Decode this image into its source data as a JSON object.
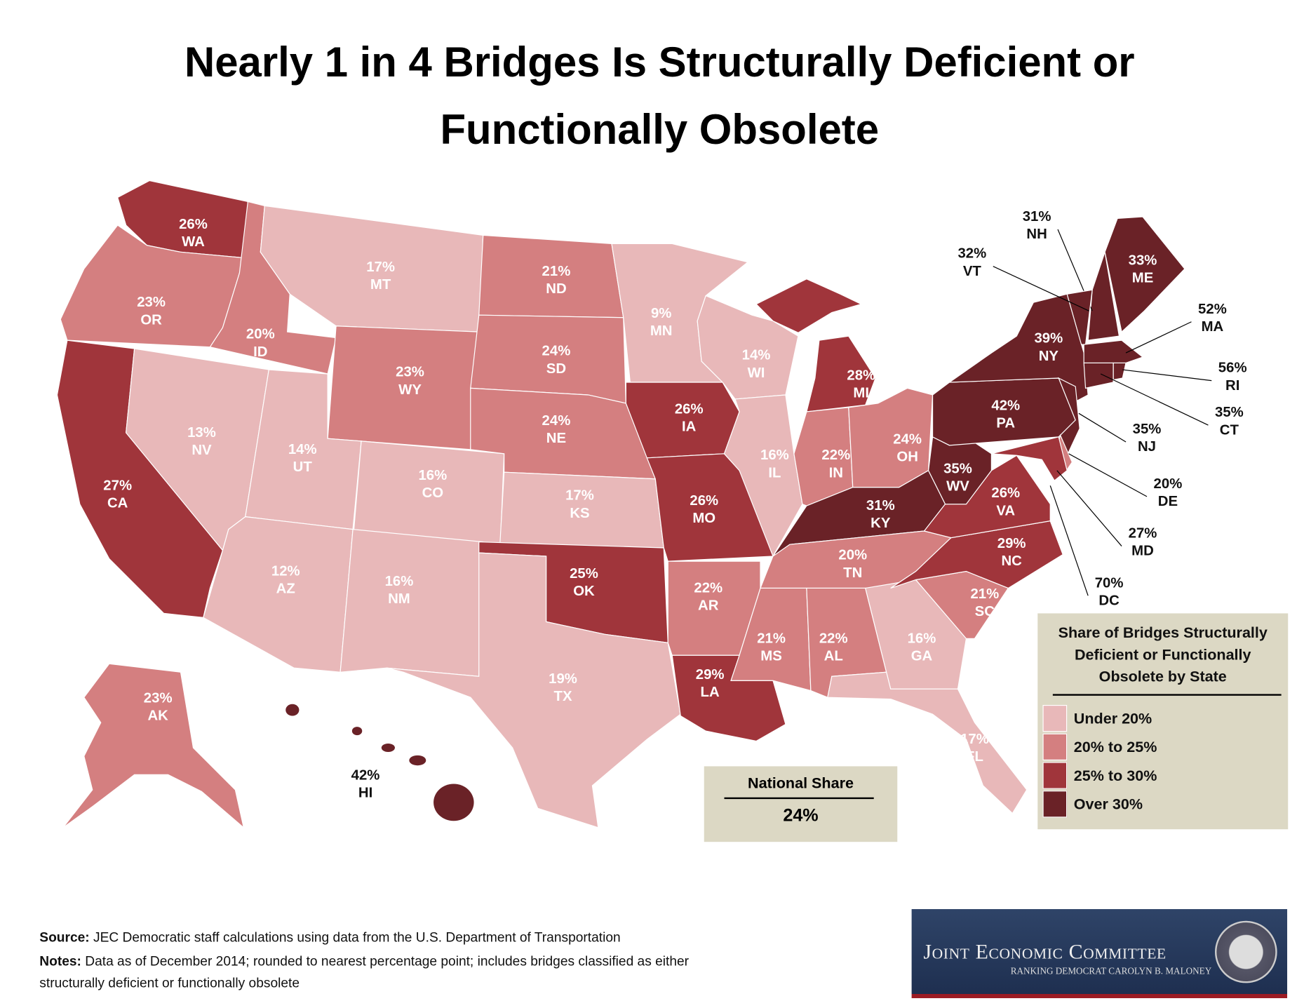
{
  "title": {
    "line1": "Nearly 1 in 4 Bridges Is Structurally Deficient or",
    "line2": "Functionally Obsolete"
  },
  "colors": {
    "under20": "#e8b8b9",
    "20to25": "#d47f80",
    "25to30": "#a0353b",
    "over30": "#6a2227"
  },
  "states": [
    {
      "abbr": "WA",
      "value": "26%"
    },
    {
      "abbr": "OR",
      "value": "23%"
    },
    {
      "abbr": "CA",
      "value": "27%"
    },
    {
      "abbr": "NV",
      "value": "13%"
    },
    {
      "abbr": "ID",
      "value": "20%"
    },
    {
      "abbr": "MT",
      "value": "17%"
    },
    {
      "abbr": "WY",
      "value": "23%"
    },
    {
      "abbr": "UT",
      "value": "14%"
    },
    {
      "abbr": "CO",
      "value": "16%"
    },
    {
      "abbr": "AZ",
      "value": "12%"
    },
    {
      "abbr": "NM",
      "value": "16%"
    },
    {
      "abbr": "ND",
      "value": "21%"
    },
    {
      "abbr": "SD",
      "value": "24%"
    },
    {
      "abbr": "NE",
      "value": "24%"
    },
    {
      "abbr": "KS",
      "value": "17%"
    },
    {
      "abbr": "OK",
      "value": "25%"
    },
    {
      "abbr": "TX",
      "value": "19%"
    },
    {
      "abbr": "MN",
      "value": "9%"
    },
    {
      "abbr": "IA",
      "value": "26%"
    },
    {
      "abbr": "MO",
      "value": "26%"
    },
    {
      "abbr": "AR",
      "value": "22%"
    },
    {
      "abbr": "LA",
      "value": "29%"
    },
    {
      "abbr": "WI",
      "value": "14%"
    },
    {
      "abbr": "IL",
      "value": "16%"
    },
    {
      "abbr": "MI",
      "value": "28%"
    },
    {
      "abbr": "IN",
      "value": "22%"
    },
    {
      "abbr": "OH",
      "value": "24%"
    },
    {
      "abbr": "KY",
      "value": "31%"
    },
    {
      "abbr": "TN",
      "value": "20%"
    },
    {
      "abbr": "MS",
      "value": "21%"
    },
    {
      "abbr": "AL",
      "value": "22%"
    },
    {
      "abbr": "GA",
      "value": "16%"
    },
    {
      "abbr": "FL",
      "value": "17%"
    },
    {
      "abbr": "SC",
      "value": "21%"
    },
    {
      "abbr": "NC",
      "value": "29%"
    },
    {
      "abbr": "VA",
      "value": "26%"
    },
    {
      "abbr": "WV",
      "value": "35%"
    },
    {
      "abbr": "PA",
      "value": "42%"
    },
    {
      "abbr": "NY",
      "value": "39%"
    },
    {
      "abbr": "ME",
      "value": "33%"
    },
    {
      "abbr": "NH",
      "value": "31%"
    },
    {
      "abbr": "VT",
      "value": "32%"
    },
    {
      "abbr": "MA",
      "value": "52%"
    },
    {
      "abbr": "RI",
      "value": "56%"
    },
    {
      "abbr": "CT",
      "value": "35%"
    },
    {
      "abbr": "NJ",
      "value": "35%"
    },
    {
      "abbr": "DE",
      "value": "20%"
    },
    {
      "abbr": "MD",
      "value": "27%"
    },
    {
      "abbr": "DC",
      "value": "70%"
    },
    {
      "abbr": "AK",
      "value": "23%"
    },
    {
      "abbr": "HI",
      "value": "42%"
    }
  ],
  "legend": {
    "title": "Share of Bridges Structurally Deficient or Functionally Obsolete by State",
    "items": [
      {
        "label": "Under 20%"
      },
      {
        "label": "20% to 25%"
      },
      {
        "label": "25% to 30%"
      },
      {
        "label": "Over 30%"
      }
    ]
  },
  "national": {
    "label": "National Share",
    "value": "24%"
  },
  "footer": {
    "source_label": "Source:",
    "source": " JEC Democratic staff calculations using data from the U.S. Department of Transportation",
    "notes_label": "Notes:",
    "notes": " Data as of December 2014; rounded to nearest percentage point; includes bridges classified as either",
    "notes2": "structurally deficient or functionally obsolete"
  },
  "logo": {
    "name": "Joint Economic Committee",
    "subtitle": "RANKING DEMOCRAT CAROLYN B. MALONEY",
    "seal": "United States Congress"
  }
}
